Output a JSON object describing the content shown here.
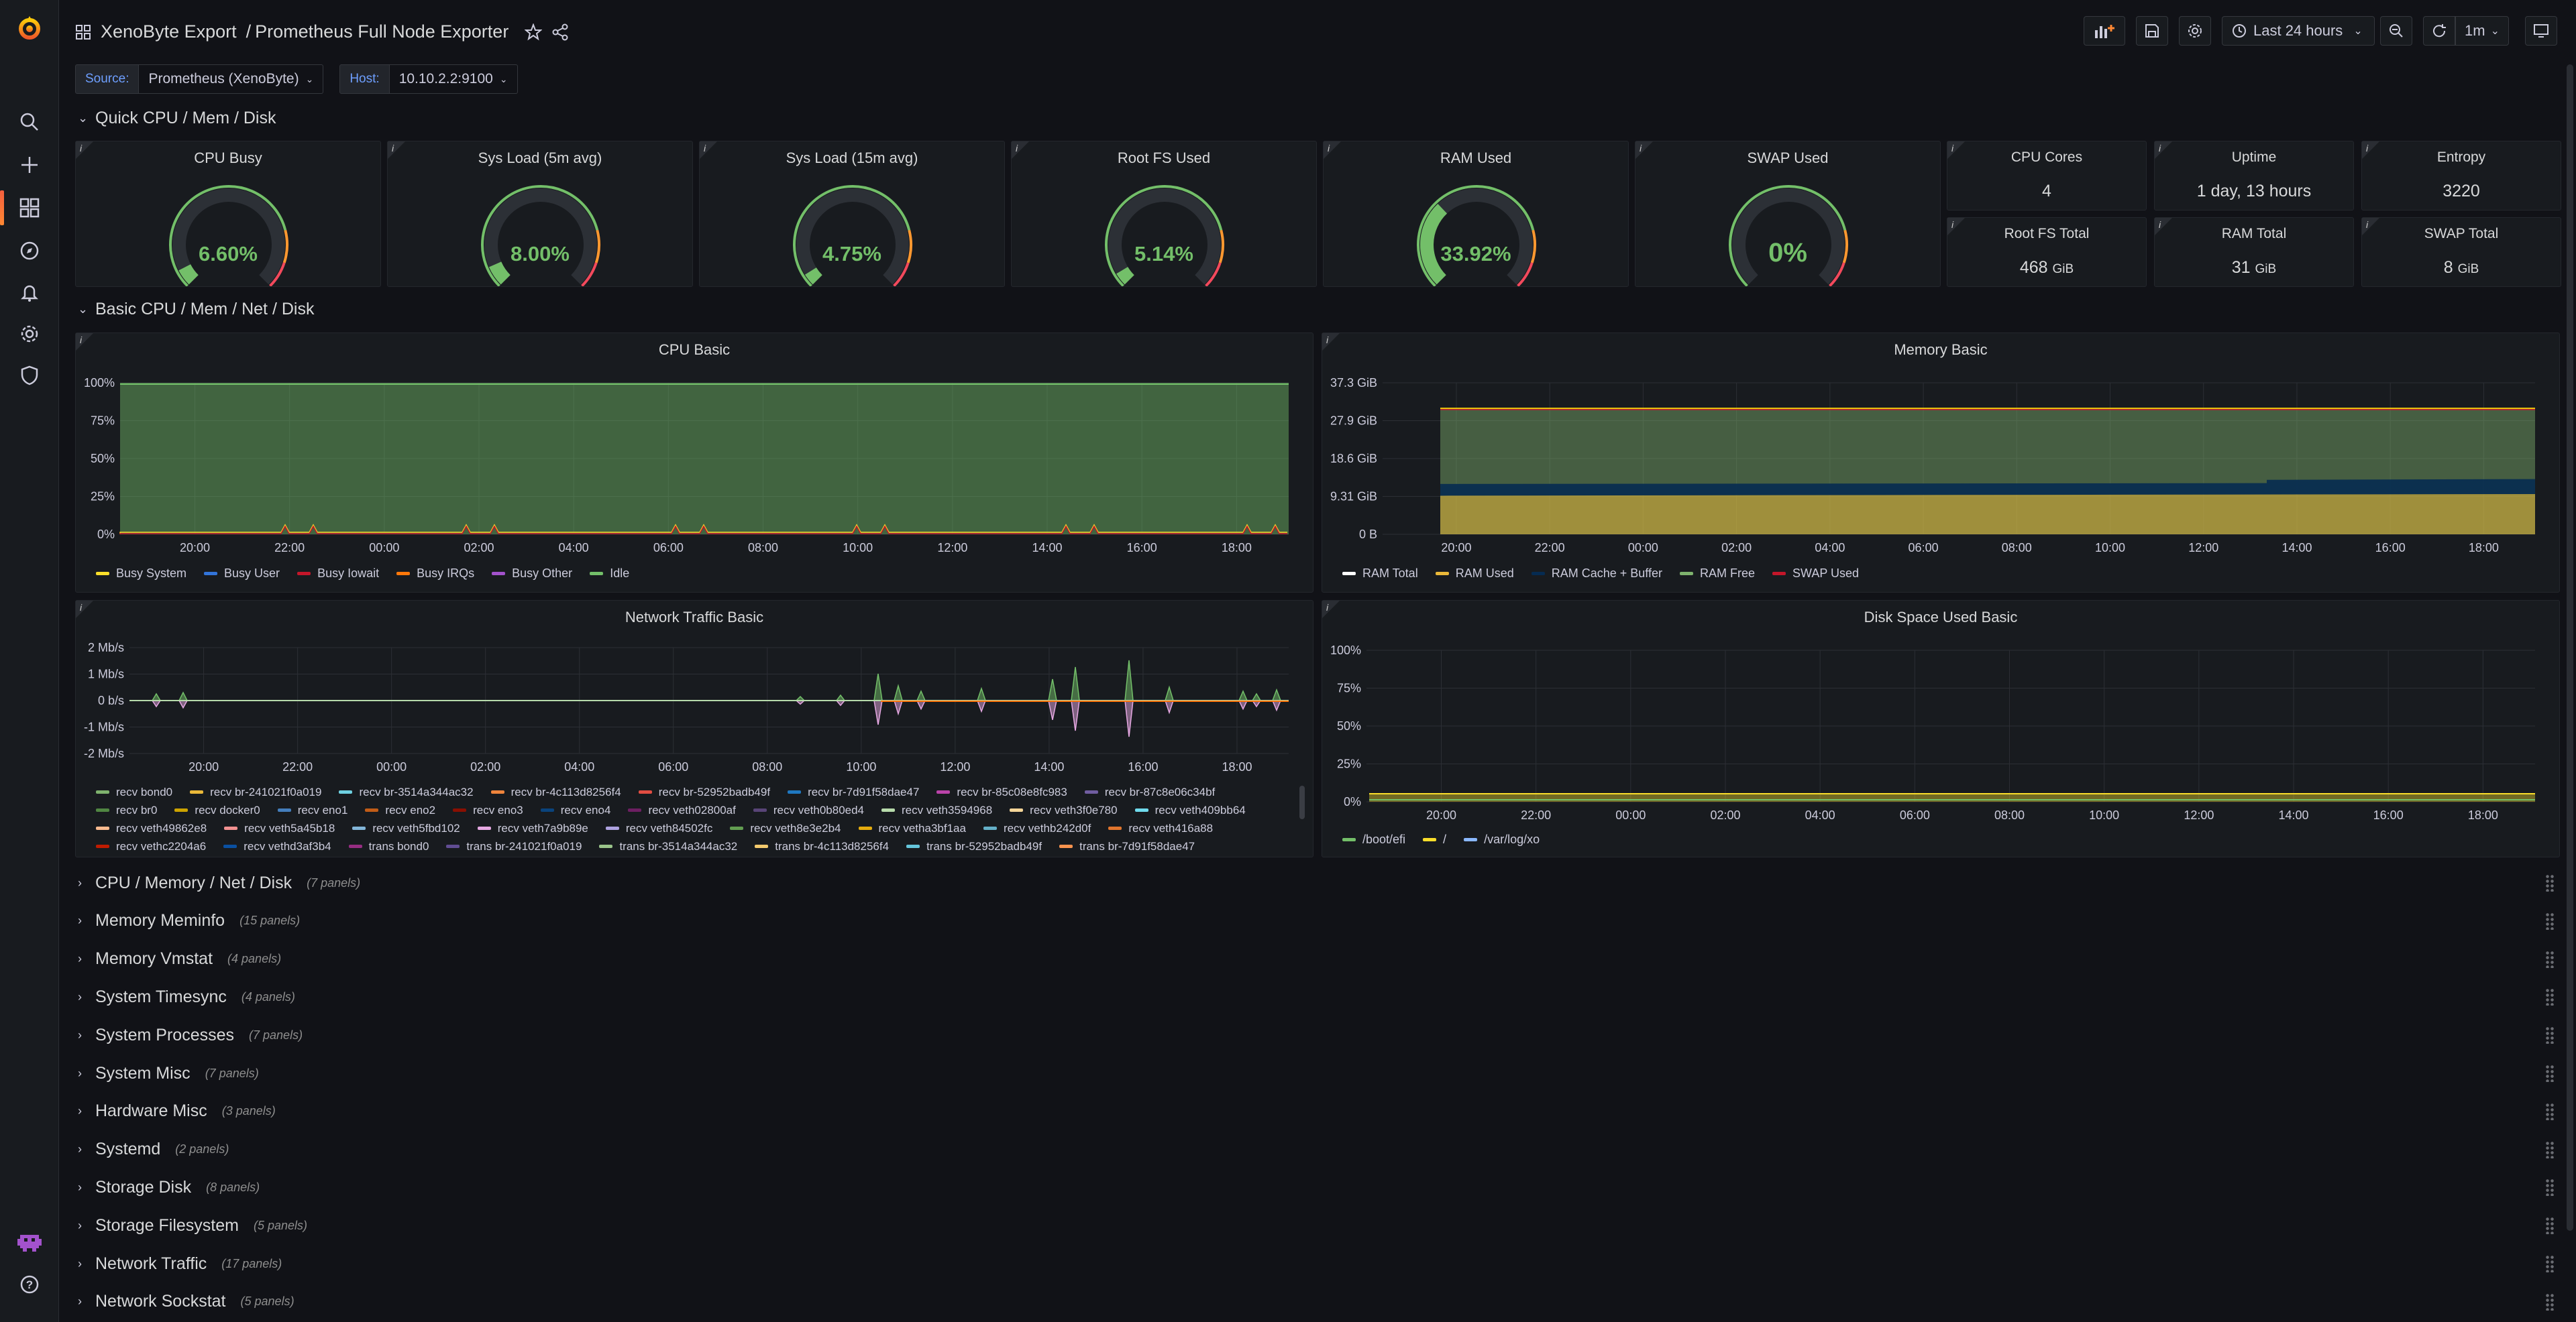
{
  "header": {
    "folder": "XenoByte Export",
    "separator": "/",
    "title": "Prometheus Full Node Exporter",
    "time_range": "Last 24 hours",
    "refresh": "1m"
  },
  "variables": [
    {
      "label": "Source:",
      "value": "Prometheus (XenoByte)"
    },
    {
      "label": "Host:",
      "value": "10.10.2.2:9100"
    }
  ],
  "rows": {
    "quick": "Quick CPU / Mem / Disk",
    "basic": "Basic CPU / Mem / Net / Disk"
  },
  "gauges": [
    {
      "title": "CPU Busy",
      "value": "6.60%",
      "fraction": 0.066
    },
    {
      "title": "Sys Load (5m avg)",
      "value": "8.00%",
      "fraction": 0.08
    },
    {
      "title": "Sys Load (15m avg)",
      "value": "4.75%",
      "fraction": 0.0475
    },
    {
      "title": "Root FS Used",
      "value": "5.14%",
      "fraction": 0.0514
    },
    {
      "title": "RAM Used",
      "value": "33.92%",
      "fraction": 0.3392
    },
    {
      "title": "SWAP Used",
      "value": "0%",
      "fraction": 0
    }
  ],
  "stats": [
    {
      "title": "CPU Cores",
      "value": "4",
      "unit": ""
    },
    {
      "title": "Uptime",
      "value": "1 day, 13 hours",
      "unit": ""
    },
    {
      "title": "Entropy",
      "value": "3220",
      "unit": ""
    },
    {
      "title": "Root FS Total",
      "value": "468",
      "unit": "GiB"
    },
    {
      "title": "RAM Total",
      "value": "31",
      "unit": "GiB"
    },
    {
      "title": "SWAP Total",
      "value": "8",
      "unit": "GiB"
    }
  ],
  "time_ticks": [
    "20:00",
    "22:00",
    "00:00",
    "02:00",
    "04:00",
    "06:00",
    "08:00",
    "10:00",
    "12:00",
    "14:00",
    "16:00",
    "18:00"
  ],
  "cpu_basic": {
    "title": "CPU Basic",
    "yticks": [
      "100%",
      "75%",
      "50%",
      "25%",
      "0%"
    ],
    "legend": [
      {
        "name": "Busy System",
        "color": "#fade2a"
      },
      {
        "name": "Busy User",
        "color": "#3274d9"
      },
      {
        "name": "Busy Iowait",
        "color": "#c4162a"
      },
      {
        "name": "Busy IRQs",
        "color": "#ff780a"
      },
      {
        "name": "Busy Other",
        "color": "#a352cc"
      },
      {
        "name": "Idle",
        "color": "#73bf69"
      }
    ]
  },
  "memory_basic": {
    "title": "Memory Basic",
    "yticks": [
      "37.3 GiB",
      "27.9 GiB",
      "18.6 GiB",
      "9.31 GiB",
      "0 B"
    ],
    "legend": [
      {
        "name": "RAM Total",
        "color": "#ffffff"
      },
      {
        "name": "RAM Used",
        "color": "#eab839"
      },
      {
        "name": "RAM Cache + Buffer",
        "color": "#052b51"
      },
      {
        "name": "RAM Free",
        "color": "#7eb26d"
      },
      {
        "name": "SWAP Used",
        "color": "#c4162a"
      }
    ]
  },
  "network_basic": {
    "title": "Network Traffic Basic",
    "yticks": [
      "2 Mb/s",
      "1 Mb/s",
      "0 b/s",
      "-1 Mb/s",
      "-2 Mb/s"
    ],
    "legend": [
      {
        "name": "recv bond0",
        "color": "#7eb26d"
      },
      {
        "name": "recv br-241021f0a019",
        "color": "#eab839"
      },
      {
        "name": "recv br-3514a344ac32",
        "color": "#6ed0e0"
      },
      {
        "name": "recv br-4c113d8256f4",
        "color": "#ef843c"
      },
      {
        "name": "recv br-52952badb49f",
        "color": "#e24d42"
      },
      {
        "name": "recv br-7d91f58dae47",
        "color": "#1f78c1"
      },
      {
        "name": "recv br-85c08e8fc983",
        "color": "#ba43a9"
      },
      {
        "name": "recv br-87c8e06c34bf",
        "color": "#705da0"
      },
      {
        "name": "recv br0",
        "color": "#508642"
      },
      {
        "name": "recv docker0",
        "color": "#cca300"
      },
      {
        "name": "recv eno1",
        "color": "#447ebc"
      },
      {
        "name": "recv eno2",
        "color": "#c15c17"
      },
      {
        "name": "recv eno3",
        "color": "#890f02"
      },
      {
        "name": "recv eno4",
        "color": "#0a437c"
      },
      {
        "name": "recv veth02800af",
        "color": "#6d1f62"
      },
      {
        "name": "recv veth0b80ed4",
        "color": "#584477"
      },
      {
        "name": "recv veth3594968",
        "color": "#b7dbab"
      },
      {
        "name": "recv veth3f0e780",
        "color": "#f4d598"
      },
      {
        "name": "recv veth409bb64",
        "color": "#70dbed"
      },
      {
        "name": "recv veth49862e8",
        "color": "#f9ba8f"
      },
      {
        "name": "recv veth5a45b18",
        "color": "#f29191"
      },
      {
        "name": "recv veth5fbd102",
        "color": "#82b5d8"
      },
      {
        "name": "recv veth7a9b89e",
        "color": "#e5a8e2"
      },
      {
        "name": "recv veth84502fc",
        "color": "#aea2e0"
      },
      {
        "name": "recv veth8e3e2b4",
        "color": "#629e51"
      },
      {
        "name": "recv vetha3bf1aa",
        "color": "#e5ac0e"
      },
      {
        "name": "recv vethb242d0f",
        "color": "#64b0c8"
      },
      {
        "name": "recv veth416a88",
        "color": "#e0752d"
      },
      {
        "name": "recv vethc2204a6",
        "color": "#bf1b00"
      },
      {
        "name": "recv vethd3af3b4",
        "color": "#0a50a1"
      },
      {
        "name": "trans bond0",
        "color": "#962d82"
      },
      {
        "name": "trans br-241021f0a019",
        "color": "#614d93"
      },
      {
        "name": "trans br-3514a344ac32",
        "color": "#9ac48a"
      },
      {
        "name": "trans br-4c113d8256f4",
        "color": "#f2c96d"
      },
      {
        "name": "trans br-52952badb49f",
        "color": "#65c5db"
      },
      {
        "name": "trans br-7d91f58dae47",
        "color": "#f9934e"
      }
    ]
  },
  "disk_basic": {
    "title": "Disk Space Used Basic",
    "yticks": [
      "100%",
      "75%",
      "50%",
      "25%",
      "0%"
    ],
    "legend": [
      {
        "name": "/boot/efi",
        "color": "#73bf69"
      },
      {
        "name": "/",
        "color": "#fade2a"
      },
      {
        "name": "/var/log/xo",
        "color": "#8ab8ff"
      }
    ]
  },
  "collapsed_rows": [
    {
      "title": "CPU / Memory / Net / Disk",
      "count": "(7 panels)"
    },
    {
      "title": "Memory Meminfo",
      "count": "(15 panels)"
    },
    {
      "title": "Memory Vmstat",
      "count": "(4 panels)"
    },
    {
      "title": "System Timesync",
      "count": "(4 panels)"
    },
    {
      "title": "System Processes",
      "count": "(7 panels)"
    },
    {
      "title": "System Misc",
      "count": "(7 panels)"
    },
    {
      "title": "Hardware Misc",
      "count": "(3 panels)"
    },
    {
      "title": "Systemd",
      "count": "(2 panels)"
    },
    {
      "title": "Storage Disk",
      "count": "(8 panels)"
    },
    {
      "title": "Storage Filesystem",
      "count": "(5 panels)"
    },
    {
      "title": "Network Traffic",
      "count": "(17 panels)"
    },
    {
      "title": "Network Sockstat",
      "count": "(5 panels)"
    }
  ]
}
